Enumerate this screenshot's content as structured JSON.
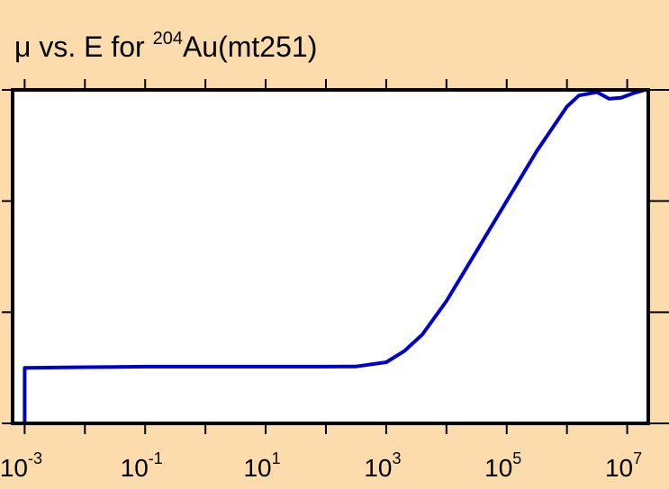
{
  "chart_data": {
    "type": "line",
    "title": {
      "prefix": "μ vs. E for ",
      "superscript": "204",
      "suffix": "Au(mt251)"
    },
    "xlabel": "",
    "ylabel": "",
    "x_scale": "log",
    "xlim_log10": [
      -3.2,
      7.35
    ],
    "ylim": [
      0,
      3
    ],
    "grid": false,
    "x_ticks": [
      {
        "base": "10",
        "exp": "-3",
        "log10": -3
      },
      {
        "base": "10",
        "exp": "-1",
        "log10": -1
      },
      {
        "base": "10",
        "exp": "1",
        "log10": 1
      },
      {
        "base": "10",
        "exp": "3",
        "log10": 3
      },
      {
        "base": "10",
        "exp": "5",
        "log10": 5
      },
      {
        "base": "10",
        "exp": "7",
        "log10": 7
      }
    ],
    "series": [
      {
        "color": "#0000cc",
        "log10_x": [
          -3.0,
          -2.0,
          -1.0,
          0.0,
          1.0,
          2.0,
          2.5,
          3.0,
          3.3,
          3.6,
          4.0,
          4.5,
          5.0,
          5.5,
          6.0,
          6.2,
          6.5,
          6.7,
          6.9,
          7.1,
          7.3
        ],
        "y": [
          0.5,
          0.505,
          0.51,
          0.51,
          0.51,
          0.51,
          0.512,
          0.55,
          0.65,
          0.8,
          1.1,
          1.55,
          2.0,
          2.45,
          2.85,
          2.95,
          2.98,
          2.92,
          2.93,
          2.97,
          3.0
        ]
      }
    ]
  },
  "colors": {
    "background": "#fcdcac",
    "plot_area": "#ffffff",
    "frame": "#000000",
    "line": "#0000cc"
  }
}
